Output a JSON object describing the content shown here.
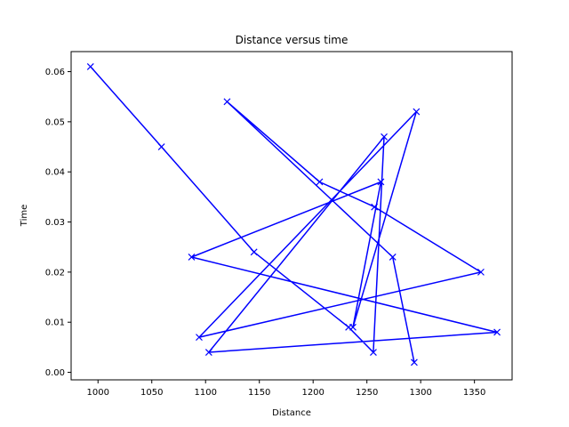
{
  "chart_data": {
    "type": "line",
    "title": "Distance versus time",
    "xlabel": "Distance",
    "ylabel": "Time",
    "xlim": [
      975,
      1385
    ],
    "ylim": [
      -0.0015,
      0.064
    ],
    "xticks": [
      1000,
      1050,
      1100,
      1150,
      1200,
      1250,
      1300,
      1350
    ],
    "yticks": [
      0.0,
      0.01,
      0.02,
      0.03,
      0.04,
      0.05,
      0.06
    ],
    "ytick_labels": [
      "0.00",
      "0.01",
      "0.02",
      "0.03",
      "0.04",
      "0.05",
      "0.06"
    ],
    "grid": false,
    "marker": "x",
    "color": "#0000ff",
    "series": [
      {
        "name": "",
        "points": [
          [
            993,
            0.061
          ],
          [
            1059,
            0.045
          ],
          [
            1145,
            0.024
          ],
          [
            1233,
            0.009
          ],
          [
            1256,
            0.004
          ],
          [
            1266,
            0.047
          ],
          [
            1103,
            0.004
          ],
          [
            1371,
            0.008
          ],
          [
            1087,
            0.023
          ],
          [
            1263,
            0.038
          ],
          [
            1237,
            0.009
          ],
          [
            1296,
            0.052
          ],
          [
            1094,
            0.007
          ],
          [
            1356,
            0.02
          ],
          [
            1257,
            0.033
          ],
          [
            1206,
            0.038
          ],
          [
            1120,
            0.054
          ],
          [
            1274,
            0.023
          ],
          [
            1294,
            0.002
          ]
        ]
      }
    ]
  }
}
